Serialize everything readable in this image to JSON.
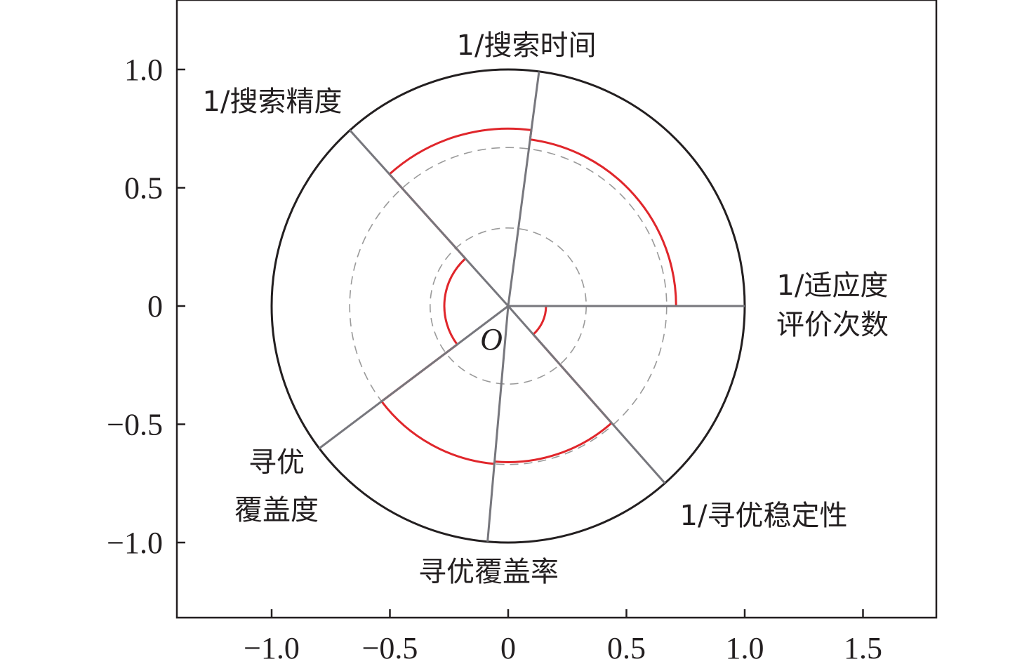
{
  "chart_data": {
    "type": "radar-sector",
    "title": "",
    "xlabel": "",
    "ylabel": "",
    "xlim": [
      -1.4,
      1.82
    ],
    "ylim": [
      -1.32,
      1.3
    ],
    "x_ticks": [
      {
        "value": -1.0,
        "label": "−1.0"
      },
      {
        "value": -0.5,
        "label": "−0.5"
      },
      {
        "value": 0,
        "label": "0"
      },
      {
        "value": 0.5,
        "label": "0.5"
      },
      {
        "value": 1.0,
        "label": "1.0"
      },
      {
        "value": 1.5,
        "label": "1.5"
      }
    ],
    "y_ticks": [
      {
        "value": 1.0,
        "label": "1.0"
      },
      {
        "value": 0.5,
        "label": "0.5"
      },
      {
        "value": 0,
        "label": "0"
      },
      {
        "value": -0.5,
        "label": "−0.5"
      },
      {
        "value": -1.0,
        "label": "−1.0"
      }
    ],
    "origin_label": "O",
    "outer_radius": 1.0,
    "reference_radii": [
      0.33,
      0.67
    ],
    "axis_angles_deg": [
      0,
      82.5,
      132,
      217,
      265,
      311.5,
      360
    ],
    "sectors": [
      {
        "label_lines": [
          "1/适应度",
          "评价次数"
        ],
        "start_deg": 0,
        "end_deg": 82.5,
        "value": 0.71
      },
      {
        "label_lines": [
          "1/搜索时间"
        ],
        "start_deg": 82.5,
        "end_deg": 132,
        "value": 0.75
      },
      {
        "label_lines": [
          "1/搜索精度"
        ],
        "start_deg": 132,
        "end_deg": 217,
        "value": 0.27
      },
      {
        "label_lines": [
          "寻优",
          "覆盖度"
        ],
        "start_deg": 217,
        "end_deg": 265,
        "value": 0.67
      },
      {
        "label_lines": [
          "寻优覆盖率"
        ],
        "start_deg": 265,
        "end_deg": 311.5,
        "value": 0.66
      },
      {
        "label_lines": [
          "1/寻优稳定性"
        ],
        "start_deg": 311.5,
        "end_deg": 360,
        "value": 0.16
      }
    ],
    "colors": {
      "value_arc": "#e0262b",
      "spoke": "#77777d",
      "outer_circle": "#231f20",
      "reference_circle": "#9a9a9a",
      "frame": "#231f20"
    }
  }
}
